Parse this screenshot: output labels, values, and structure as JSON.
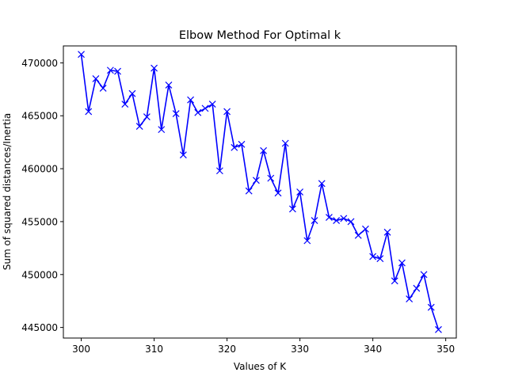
{
  "chart_data": {
    "type": "line",
    "title": "Elbow Method For Optimal k",
    "xlabel": "Values of K",
    "ylabel": "Sum of squared distances/Inertia",
    "x": [
      300,
      301,
      302,
      303,
      304,
      305,
      306,
      307,
      308,
      309,
      310,
      311,
      312,
      313,
      314,
      315,
      316,
      317,
      318,
      319,
      320,
      321,
      322,
      323,
      324,
      325,
      326,
      327,
      328,
      329,
      330,
      331,
      332,
      333,
      334,
      335,
      336,
      337,
      338,
      339,
      340,
      341,
      342,
      343,
      344,
      345,
      346,
      347,
      348,
      349
    ],
    "series": [
      {
        "values": [
          470800,
          465400,
          468500,
          467600,
          469300,
          469200,
          466100,
          467100,
          464000,
          464900,
          469500,
          463700,
          467900,
          465200,
          461300,
          466500,
          465300,
          465700,
          466100,
          459800,
          465400,
          462000,
          462300,
          457900,
          458900,
          461700,
          459100,
          457700,
          462400,
          456200,
          457800,
          453200,
          455100,
          458600,
          455400,
          455100,
          455300,
          455000,
          453700,
          454300,
          451700,
          451500,
          454000,
          449400,
          451100,
          447700,
          448700,
          450000,
          446900,
          444800
        ],
        "color": "#0000ff",
        "marker": "x"
      }
    ],
    "xlim": [
      297.55,
      351.45
    ],
    "ylim": [
      444000,
      471600
    ],
    "xticks": [
      300,
      310,
      320,
      330,
      340,
      350
    ],
    "yticks": [
      445000,
      450000,
      455000,
      460000,
      465000,
      470000
    ],
    "xtick_labels": [
      "300",
      "310",
      "320",
      "330",
      "340",
      "350"
    ],
    "ytick_labels": [
      "445000",
      "450000",
      "455000",
      "460000",
      "465000",
      "470000"
    ],
    "grid": false,
    "legend": "none"
  }
}
